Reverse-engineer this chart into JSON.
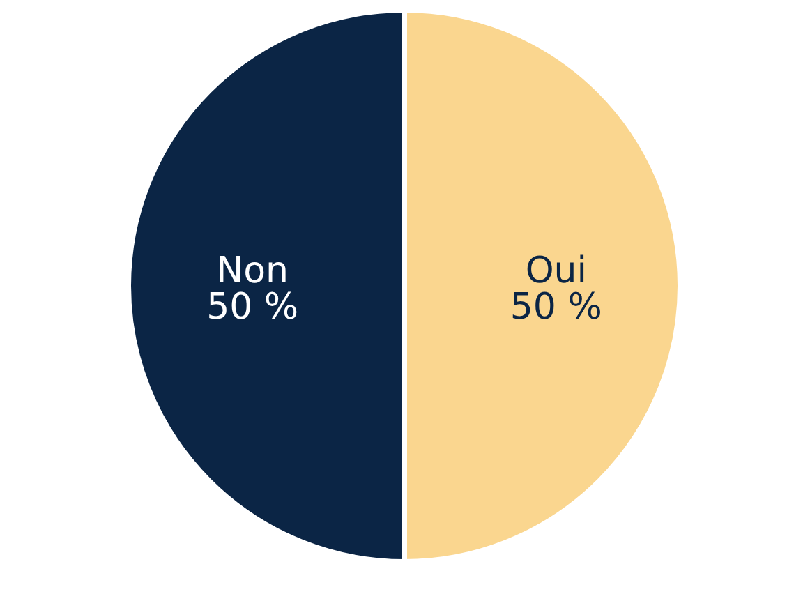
{
  "chart_data": {
    "type": "pie",
    "categories": [
      "Oui",
      "Non"
    ],
    "values": [
      50,
      50
    ],
    "colors": [
      "#fad68f",
      "#0b2545"
    ],
    "value_labels": [
      "50 %",
      "50 %"
    ]
  }
}
